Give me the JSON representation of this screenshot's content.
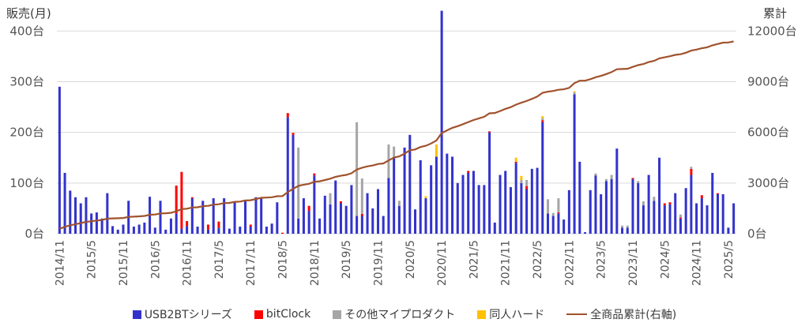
{
  "chart_data": {
    "type": "bar+line",
    "ylabel_left": "販売(月)",
    "ylabel_right": "累計",
    "left_ticks": [
      "0台",
      "100台",
      "200台",
      "300台",
      "400台"
    ],
    "right_ticks": [
      "0台",
      "3000台",
      "6000台",
      "9000台",
      "12000台"
    ],
    "ylim_left": [
      0,
      430
    ],
    "ylim_right": [
      0,
      12900
    ],
    "x_tick_labels": [
      "2014/11",
      "2015/5",
      "2015/11",
      "2016/5",
      "2016/11",
      "2017/5",
      "2017/11",
      "2018/5",
      "2018/11",
      "2019/5",
      "2019/11",
      "2020/5",
      "2020/11",
      "2021/5",
      "2021/11",
      "2022/5",
      "2022/11",
      "2023/5",
      "2023/11",
      "2024/5",
      "2024/11",
      "2025/5"
    ],
    "start_month": "2014/11",
    "grid": true,
    "legend_position": "bottom",
    "series": [
      {
        "name": "USB2BTシリーズ",
        "color": "#3333cc",
        "values": [
          290,
          120,
          85,
          72,
          60,
          72,
          40,
          42,
          30,
          80,
          15,
          8,
          18,
          65,
          14,
          18,
          22,
          73,
          12,
          65,
          8,
          30,
          40,
          10,
          15,
          70,
          14,
          65,
          8,
          70,
          12,
          70,
          10,
          62,
          14,
          66,
          14,
          72,
          70,
          14,
          20,
          62,
          0,
          230,
          195,
          30,
          70,
          45,
          115,
          30,
          75,
          58,
          105,
          60,
          55,
          96,
          35,
          35,
          80,
          50,
          88,
          35,
          110,
          150,
          55,
          170,
          195,
          48,
          145,
          70,
          135,
          152,
          440,
          158,
          152,
          100,
          116,
          120,
          124,
          96,
          96,
          200,
          22,
          116,
          124,
          92,
          140,
          100,
          88,
          128,
          130,
          220,
          40,
          35,
          40,
          28,
          86,
          275,
          142,
          3,
          86,
          115,
          78,
          104,
          108,
          168,
          12,
          12,
          108,
          100,
          56,
          116,
          65,
          150,
          56,
          58,
          80,
          30,
          90,
          116,
          60,
          70,
          56,
          120,
          78,
          78,
          12,
          60
        ]
      },
      {
        "name": "bitClock",
        "color": "#ff0000",
        "values": [
          0,
          0,
          0,
          0,
          0,
          0,
          0,
          0,
          0,
          0,
          0,
          0,
          0,
          0,
          0,
          0,
          0,
          0,
          0,
          0,
          0,
          0,
          55,
          112,
          10,
          2,
          0,
          0,
          10,
          0,
          12,
          0,
          0,
          0,
          0,
          0,
          4,
          0,
          0,
          0,
          0,
          0,
          2,
          8,
          4,
          0,
          0,
          10,
          4,
          0,
          0,
          0,
          0,
          4,
          0,
          0,
          0,
          4,
          0,
          0,
          0,
          0,
          0,
          0,
          0,
          0,
          0,
          0,
          0,
          0,
          0,
          0,
          0,
          0,
          0,
          0,
          0,
          4,
          0,
          0,
          0,
          2,
          0,
          0,
          0,
          0,
          2,
          0,
          6,
          0,
          0,
          4,
          0,
          0,
          2,
          0,
          0,
          0,
          0,
          0,
          0,
          0,
          0,
          0,
          0,
          0,
          0,
          0,
          2,
          0,
          0,
          0,
          0,
          0,
          4,
          4,
          0,
          2,
          0,
          12,
          0,
          6,
          0,
          0,
          2,
          0,
          0,
          0
        ]
      },
      {
        "name": "その他マイプロダクト",
        "color": "#a6a6a6",
        "values": [
          0,
          0,
          0,
          0,
          0,
          0,
          0,
          0,
          0,
          0,
          0,
          0,
          0,
          0,
          0,
          0,
          0,
          0,
          0,
          0,
          0,
          0,
          0,
          0,
          0,
          0,
          0,
          0,
          0,
          0,
          0,
          0,
          0,
          0,
          0,
          0,
          0,
          0,
          0,
          0,
          0,
          0,
          0,
          0,
          0,
          140,
          0,
          0,
          0,
          0,
          0,
          22,
          0,
          0,
          0,
          0,
          185,
          70,
          0,
          0,
          0,
          0,
          66,
          22,
          10,
          0,
          0,
          0,
          0,
          0,
          0,
          0,
          0,
          0,
          0,
          0,
          0,
          0,
          0,
          0,
          0,
          0,
          0,
          0,
          0,
          0,
          0,
          6,
          12,
          0,
          0,
          4,
          28,
          6,
          28,
          0,
          0,
          4,
          0,
          0,
          0,
          4,
          0,
          4,
          8,
          0,
          4,
          4,
          0,
          4,
          8,
          0,
          8,
          0,
          0,
          0,
          0,
          6,
          0,
          4,
          0,
          0,
          0,
          0,
          0,
          0,
          0,
          0
        ]
      },
      {
        "name": "同人ハード",
        "color": "#ffc000",
        "values": [
          0,
          0,
          0,
          0,
          0,
          0,
          0,
          0,
          0,
          0,
          0,
          0,
          0,
          0,
          0,
          0,
          0,
          0,
          0,
          0,
          0,
          0,
          0,
          0,
          0,
          0,
          0,
          0,
          0,
          0,
          0,
          0,
          0,
          0,
          0,
          0,
          0,
          0,
          0,
          0,
          0,
          0,
          0,
          0,
          0,
          0,
          0,
          0,
          0,
          0,
          0,
          0,
          0,
          0,
          0,
          0,
          0,
          0,
          0,
          0,
          0,
          0,
          0,
          0,
          0,
          0,
          0,
          0,
          0,
          4,
          0,
          24,
          0,
          0,
          0,
          0,
          0,
          0,
          0,
          0,
          0,
          0,
          0,
          0,
          0,
          0,
          8,
          8,
          0,
          0,
          0,
          4,
          0,
          0,
          0,
          0,
          0,
          2,
          0,
          0,
          0,
          0,
          0,
          0,
          0,
          0,
          0,
          0,
          0,
          0,
          0,
          0,
          0,
          0,
          0,
          0,
          0,
          0,
          0,
          0,
          0,
          0,
          0,
          0,
          0,
          0,
          0,
          0
        ]
      },
      {
        "name": "全商品累計(右軸)",
        "color": "#a0522d",
        "axis": "right",
        "values": [
          290,
          410,
          495,
          567,
          627,
          699,
          739,
          781,
          811,
          891,
          906,
          914,
          932,
          997,
          1011,
          1029,
          1051,
          1124,
          1136,
          1201,
          1209,
          1239,
          1334,
          1456,
          1481,
          1553,
          1567,
          1632,
          1650,
          1720,
          1744,
          1814,
          1824,
          1886,
          1900,
          1966,
          1984,
          2056,
          2126,
          2140,
          2160,
          2222,
          2224,
          2462,
          2661,
          2831,
          2901,
          2956,
          3075,
          3105,
          3180,
          3260,
          3365,
          3429,
          3484,
          3580,
          3800,
          3909,
          3989,
          4039,
          4127,
          4162,
          4338,
          4510,
          4575,
          4745,
          4940,
          4988,
          5133,
          5207,
          5342,
          5518,
          5958,
          6116,
          6268,
          6368,
          6484,
          6608,
          6732,
          6828,
          6924,
          7126,
          7148,
          7264,
          7390,
          7490,
          7642,
          7756,
          7856,
          7984,
          8118,
          8342,
          8410,
          8451,
          8521,
          8549,
          8635,
          8914,
          9056,
          9059,
          9145,
          9264,
          9342,
          9450,
          9566,
          9734,
          9750,
          9766,
          9876,
          9980,
          10044,
          10160,
          10233,
          10383,
          10443,
          10507,
          10587,
          10623,
          10713,
          10841,
          10901,
          10977,
          11033,
          11153,
          11231,
          11309,
          11321,
          11381
        ]
      }
    ]
  }
}
